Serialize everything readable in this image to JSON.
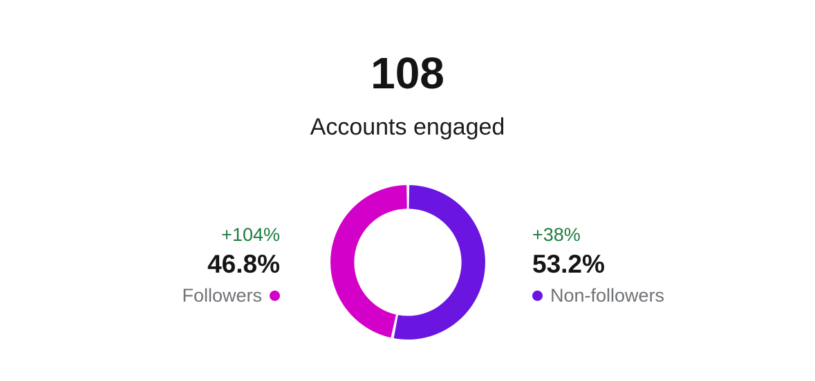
{
  "summary": {
    "total": "108",
    "subtitle": "Accounts engaged"
  },
  "chart_data": {
    "type": "pie",
    "donut": true,
    "title": "Accounts engaged",
    "total": 108,
    "legend_position": "sides",
    "start_angle": "top",
    "direction": "clockwise-from-top-purple",
    "slices": [
      {
        "label": "Followers",
        "value": 46.8,
        "value_label": "46.8%",
        "change_label": "+104%",
        "color": "#d300c9",
        "side": "left"
      },
      {
        "label": "Non-followers",
        "value": 53.2,
        "value_label": "53.2%",
        "change_label": "+38%",
        "color": "#6a15e0",
        "side": "right"
      }
    ],
    "colors": {
      "positive_change": "#1d7d3e",
      "value_text": "#151517",
      "label_text": "#6f7276",
      "background": "#ffffff"
    }
  }
}
